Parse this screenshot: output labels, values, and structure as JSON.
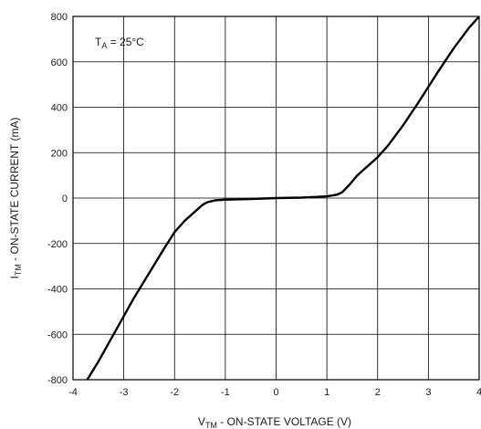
{
  "chart_data": {
    "type": "line",
    "title": "",
    "xlabel": {
      "main": "V",
      "sub": "TM",
      "rest": " - ON-STATE VOLTAGE (V)"
    },
    "ylabel": {
      "main": "I",
      "sub": "TM",
      "rest": " - ON-STATE CURRENT (mA)"
    },
    "annotation": {
      "main": "T",
      "sub": "A",
      "rest": " = 25°C"
    },
    "xlim": [
      -4,
      4
    ],
    "ylim": [
      -800,
      800
    ],
    "xticks": [
      -4,
      -3,
      -2,
      -1,
      0,
      1,
      2,
      3,
      4
    ],
    "yticks": [
      -800,
      -600,
      -400,
      -200,
      0,
      200,
      400,
      600,
      800
    ],
    "xtick_labels": [
      "-4",
      "-3",
      "-2",
      "-1",
      "0",
      "1",
      "2",
      "3",
      "4"
    ],
    "ytick_labels": [
      "-800",
      "-600",
      "-400",
      "-200",
      "0",
      "200",
      "400",
      "600",
      "800"
    ],
    "grid": true,
    "series": [
      {
        "color": "#000000",
        "x": [
          -3.72,
          -3.5,
          -3.2,
          -3.0,
          -2.8,
          -2.5,
          -2.2,
          -2.0,
          -1.8,
          -1.6,
          -1.45,
          -1.35,
          -1.2,
          -1.0,
          -0.5,
          0.0,
          0.5,
          0.8,
          1.0,
          1.2,
          1.3,
          1.45,
          1.6,
          1.8,
          2.0,
          2.2,
          2.5,
          2.8,
          3.0,
          3.2,
          3.5,
          3.8,
          4.0
        ],
        "y": [
          -800,
          -720,
          -600,
          -520,
          -440,
          -330,
          -220,
          -150,
          -100,
          -60,
          -30,
          -18,
          -10,
          -7,
          -4,
          0,
          2,
          5,
          8,
          15,
          25,
          60,
          100,
          140,
          180,
          230,
          320,
          420,
          490,
          560,
          660,
          750,
          800
        ]
      }
    ]
  }
}
